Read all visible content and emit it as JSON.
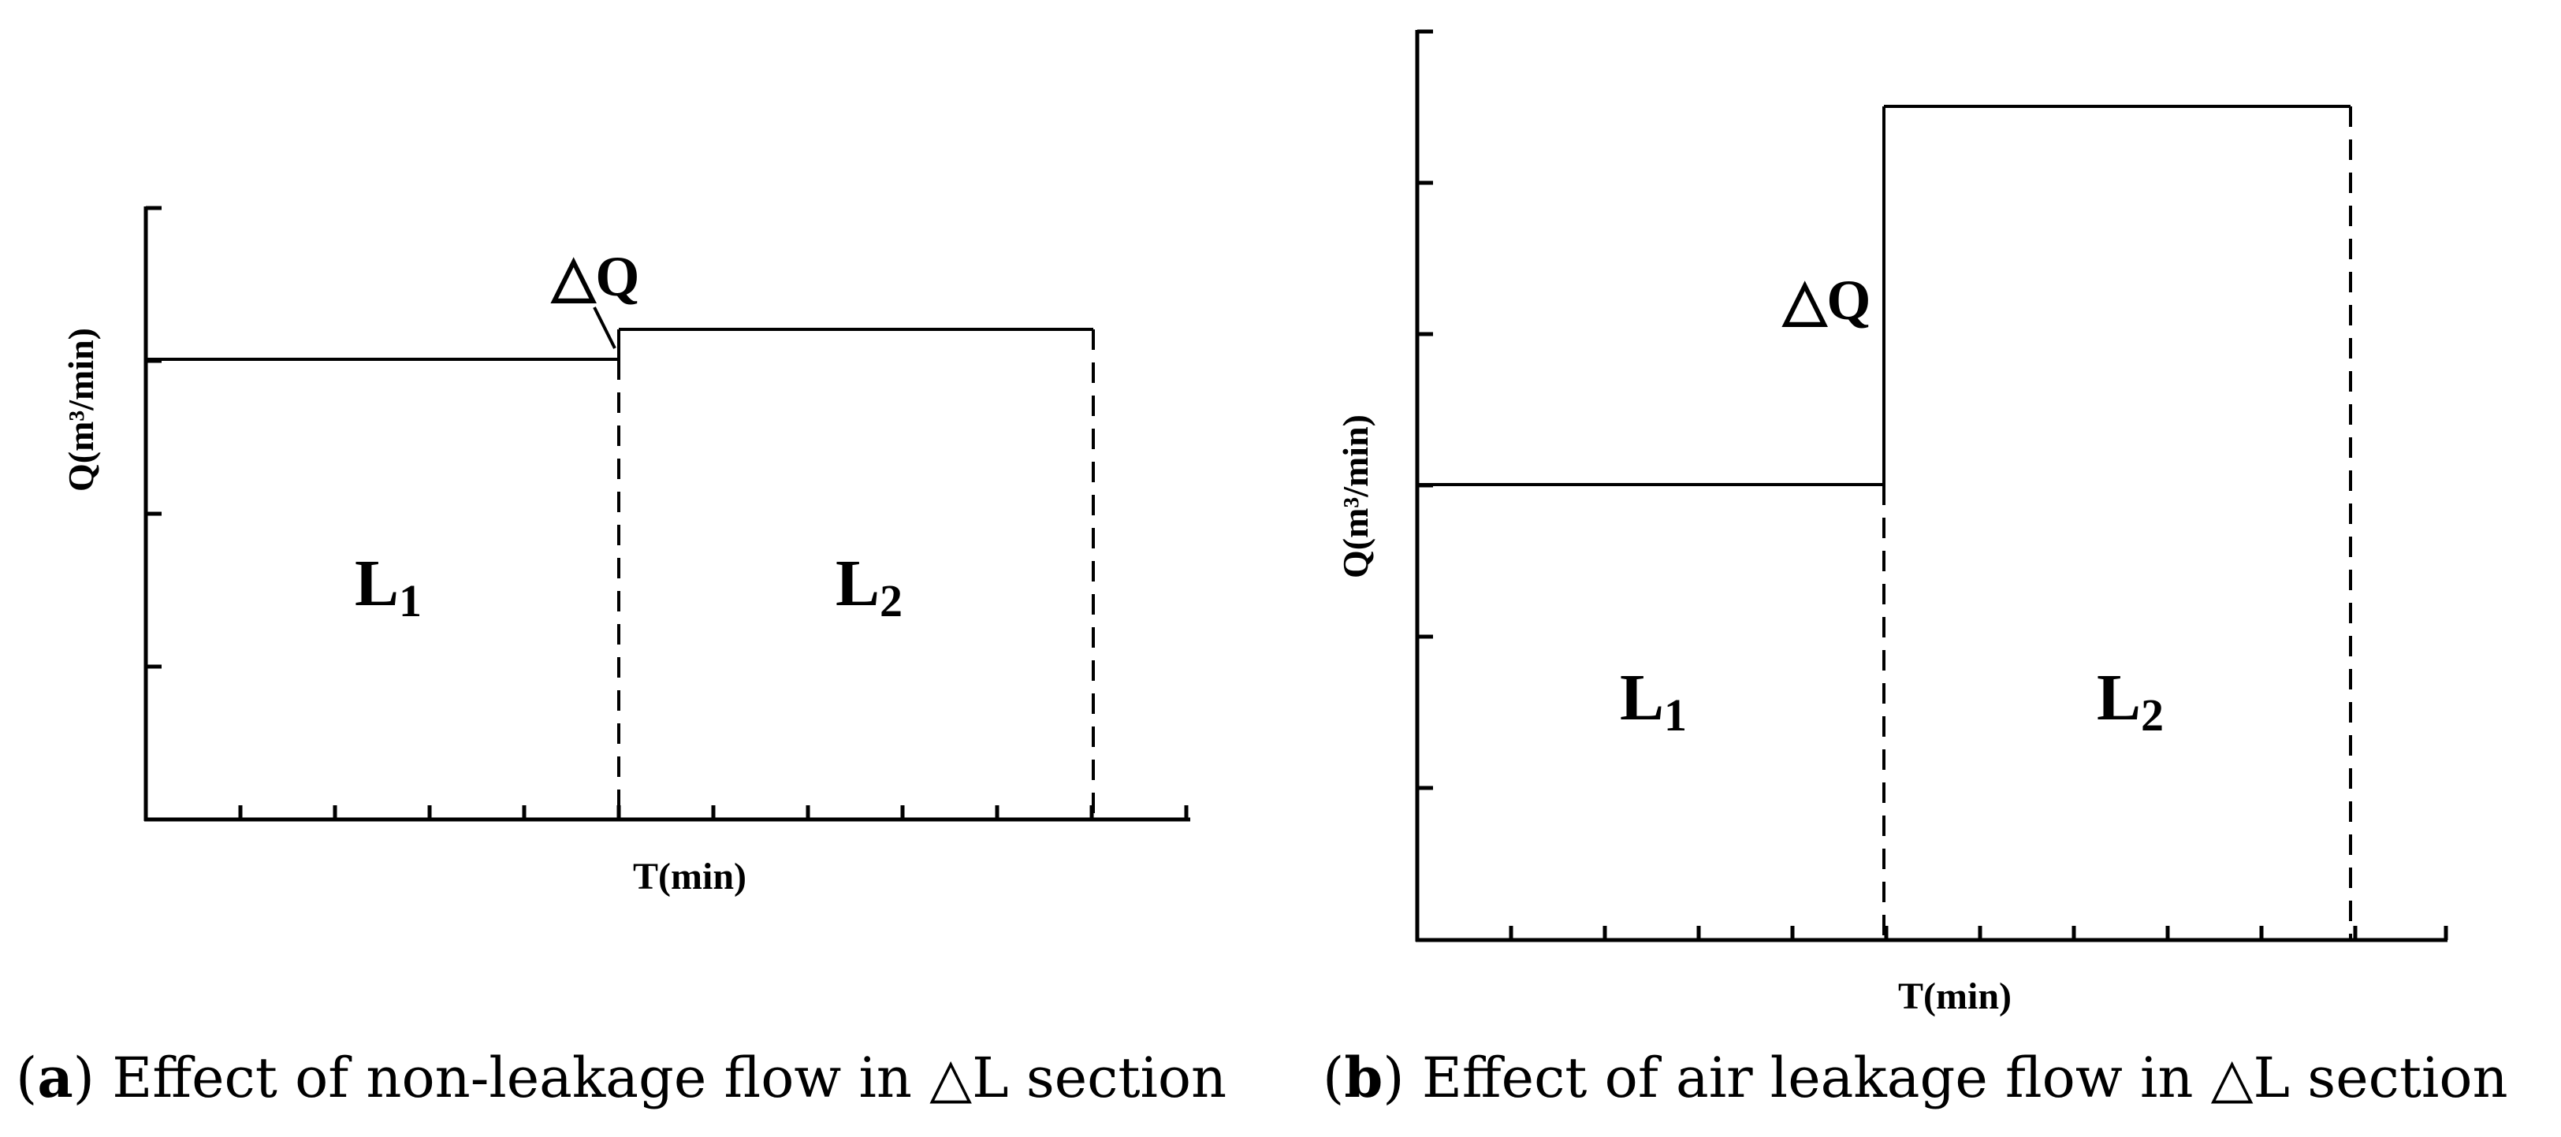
{
  "panels": [
    {
      "id": "a",
      "ylabel": "Q(m³/min)",
      "xlabel": "T(min)",
      "delta_label": "△Q",
      "region1": {
        "letter": "L",
        "sub": "1"
      },
      "region2": {
        "letter": "L",
        "sub": "2"
      },
      "caption_letter": "a",
      "caption_text": "Effect of non-leakage flow in △L section",
      "q_before": 3,
      "q_after": 3.2,
      "q_max": 4
    },
    {
      "id": "b",
      "ylabel": "Q(m³/min)",
      "xlabel": "T(min)",
      "delta_label": "△Q",
      "region1": {
        "letter": "L",
        "sub": "1"
      },
      "region2": {
        "letter": "L",
        "sub": "2"
      },
      "caption_letter": "b",
      "caption_text": "Effect of air leakage flow in △L section",
      "q_before": 3,
      "q_after": 5.5,
      "q_max": 6
    }
  ]
}
